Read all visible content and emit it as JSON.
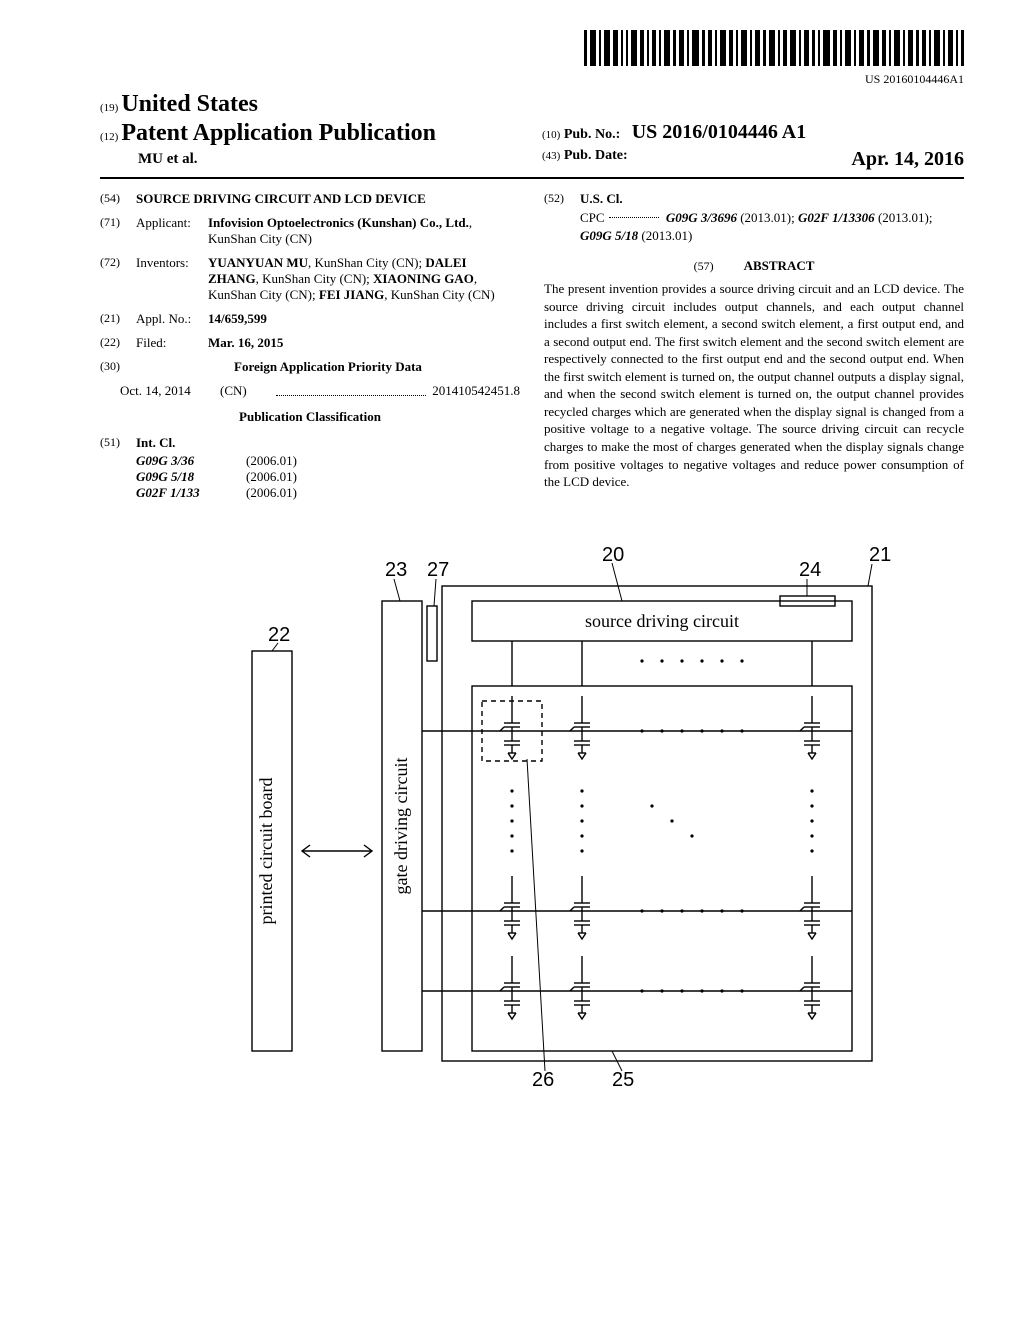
{
  "barcode_number": "US 20160104446A1",
  "header": {
    "country_tag": "(19)",
    "country": "United States",
    "pub_tag": "(12)",
    "pub_type": "Patent Application Publication",
    "authors": "MU et al.",
    "pubno_tag": "(10)",
    "pubno_label": "Pub. No.:",
    "pubno_value": "US 2016/0104446 A1",
    "pubdate_tag": "(43)",
    "pubdate_label": "Pub. Date:",
    "pubdate_value": "Apr. 14, 2016"
  },
  "left": {
    "title_tag": "(54)",
    "title": "SOURCE DRIVING CIRCUIT AND LCD DEVICE",
    "applicant_tag": "(71)",
    "applicant_label": "Applicant:",
    "applicant_value": "Infovision Optoelectronics (Kunshan) Co., Ltd., KunShan City (CN)",
    "applicant_value_bold": "Infovision Optoelectronics (Kunshan) Co., Ltd.",
    "applicant_value_rest": ", KunShan City (CN)",
    "inventors_tag": "(72)",
    "inventors_label": "Inventors:",
    "inventors": [
      {
        "name": "YUANYUAN MU",
        "loc": ", KunShan City (CN);"
      },
      {
        "name": "DALEI ZHANG",
        "loc": ", KunShan City (CN);"
      },
      {
        "name": "XIAONING GAO",
        "loc": ", KunShan City (CN);"
      },
      {
        "name": "FEI JIANG",
        "loc": ", KunShan City (CN)"
      }
    ],
    "applno_tag": "(21)",
    "applno_label": "Appl. No.:",
    "applno_value": "14/659,599",
    "filed_tag": "(22)",
    "filed_label": "Filed:",
    "filed_value": "Mar. 16, 2015",
    "foreign_tag": "(30)",
    "foreign_head": "Foreign Application Priority Data",
    "foreign_date": "Oct. 14, 2014",
    "foreign_cc": "(CN)",
    "foreign_num": "201410542451.8",
    "pubclass_head": "Publication Classification",
    "intcl_tag": "(51)",
    "intcl_label": "Int. Cl.",
    "intcl": [
      {
        "code": "G09G 3/36",
        "ver": "(2006.01)"
      },
      {
        "code": "G09G 5/18",
        "ver": "(2006.01)"
      },
      {
        "code": "G02F 1/133",
        "ver": "(2006.01)"
      }
    ]
  },
  "right": {
    "uscl_tag": "(52)",
    "uscl_label": "U.S. Cl.",
    "cpc_label": "CPC",
    "cpc_1": "G09G 3/3696",
    "cpc_1v": "(2013.01);",
    "cpc_2": "G02F 1/13306",
    "cpc_2v": "(2013.01);",
    "cpc_3": "G09G 5/18",
    "cpc_3v": "(2013.01)",
    "abstract_tag": "(57)",
    "abstract_head": "ABSTRACT",
    "abstract": "The present invention provides a source driving circuit and an LCD device. The source driving circuit includes output channels, and each output channel includes a first switch element, a second switch element, a first output end, and a second output end. The first switch element and the second switch element are respectively connected to the first output end and the second output end. When the first switch element is turned on, the output channel outputs a display signal, and when the second switch element is turned on, the output channel provides recycled charges which are generated when the display signal is changed from a positive voltage to a negative voltage. The source driving circuit can recycle charges to make the most of charges generated when the display signals change from positive voltages to negative voltages and reduce power consumption of the LCD device."
  },
  "figure": {
    "labels": {
      "20": "20",
      "21": "21",
      "22": "22",
      "23": "23",
      "24": "24",
      "25": "25",
      "26": "26",
      "27": "27"
    },
    "text": {
      "pcb": "printed circuit board",
      "gate": "gate driving circuit",
      "source": "source driving circuit"
    },
    "colors": {
      "stroke": "#000000",
      "bg": "#ffffff"
    },
    "stroke_width": 1.4
  }
}
